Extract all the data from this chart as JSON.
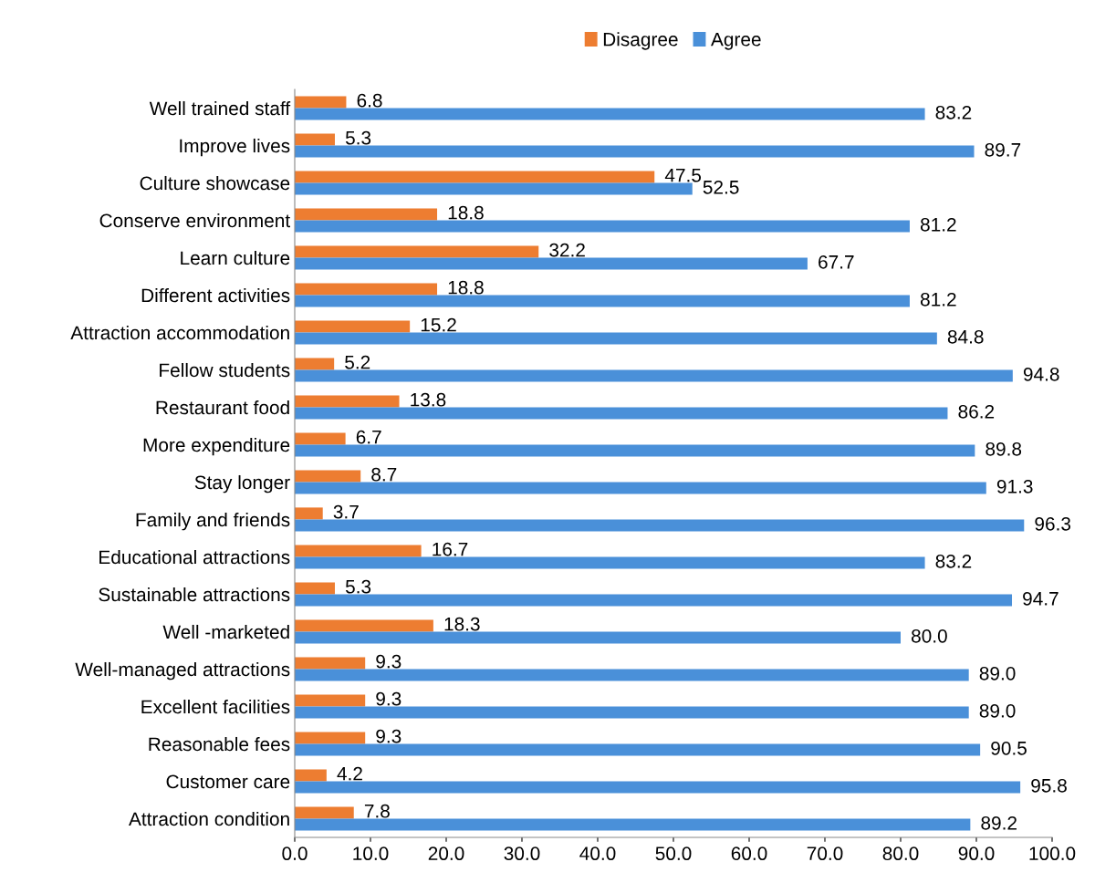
{
  "chart_data": {
    "type": "bar",
    "orientation": "horizontal",
    "legend": "top",
    "data_labels": true,
    "categories": [
      "Well trained staff",
      "Improve lives",
      "Culture showcase",
      "Conserve environment",
      "Learn culture",
      "Different activities",
      "Attraction accommodation",
      "Fellow students",
      "Restaurant food",
      "More expenditure",
      "Stay longer",
      "Family and friends",
      "Educational attractions",
      "Sustainable attractions",
      "Well -marketed",
      "Well-managed attractions",
      "Excellent facilities",
      "Reasonable fees",
      "Customer care",
      "Attraction condition"
    ],
    "series": [
      {
        "name": "Disagree",
        "color": "#ed7d31",
        "values": [
          6.8,
          5.3,
          47.5,
          18.8,
          32.2,
          18.8,
          15.2,
          5.2,
          13.8,
          6.7,
          8.7,
          3.7,
          16.7,
          5.3,
          18.3,
          9.3,
          9.3,
          9.3,
          4.2,
          7.8
        ],
        "value_labels": [
          "6.8",
          "5.3",
          "47.5",
          "18.8",
          "32.2",
          "18.8",
          "15.2",
          "5.2",
          "13.8",
          "6.7",
          "8.7",
          "3.7",
          "16.7",
          "5.3",
          "18.3",
          "9.3",
          "9.3",
          "9.3",
          "4.2",
          "7.8"
        ]
      },
      {
        "name": "Agree",
        "color": "#4a90d9",
        "values": [
          83.2,
          89.7,
          52.5,
          81.2,
          67.7,
          81.2,
          84.8,
          94.8,
          86.2,
          89.8,
          91.3,
          96.3,
          83.2,
          94.7,
          80.0,
          89.0,
          89.0,
          90.5,
          95.8,
          89.2
        ],
        "value_labels": [
          "83.2",
          "89.7",
          "52.5",
          "81.2",
          "67.7",
          "81.2",
          "84.8",
          "94.8",
          "86.2",
          "89.8",
          "91.3",
          "96.3",
          "83.2",
          "94.7",
          "80.0",
          "89.0",
          "89.0",
          "90.5",
          "95.8",
          "89.2"
        ]
      }
    ],
    "xlim": [
      0,
      100
    ],
    "xticks": [
      {
        "value": 0,
        "label": "0.0"
      },
      {
        "value": 10,
        "label": "10.0"
      },
      {
        "value": 20,
        "label": "20.0"
      },
      {
        "value": 30,
        "label": "30.0"
      },
      {
        "value": 40,
        "label": "40.0"
      },
      {
        "value": 50,
        "label": "50.0"
      },
      {
        "value": 60,
        "label": "60.0"
      },
      {
        "value": 70,
        "label": "70.0"
      },
      {
        "value": 80,
        "label": "80.0"
      },
      {
        "value": 90,
        "label": "90.0"
      },
      {
        "value": 100,
        "label": "100.0"
      }
    ]
  }
}
